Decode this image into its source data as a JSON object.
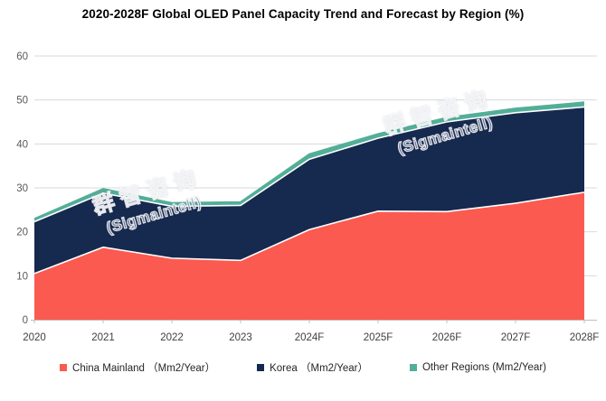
{
  "title": "2020-2028F Global OLED Panel Capacity Trend and Forecast by Region (%)",
  "watermark": {
    "line1": "群智咨询",
    "line2": "(Sigmaintell)"
  },
  "chart_data": {
    "type": "area",
    "stacked": true,
    "title": "2020-2028F Global OLED Panel Capacity Trend and Forecast by Region (%)",
    "categories": [
      "2020",
      "2021",
      "2022",
      "2023",
      "2024F",
      "2025F",
      "2026F",
      "2027F",
      "2028F"
    ],
    "series": [
      {
        "name": "China Mainland",
        "legend_label": "China Mainland （Mm2/Year）",
        "color": "#FB5A50",
        "values": [
          10.5,
          16.5,
          14.0,
          13.5,
          20.5,
          24.7,
          24.6,
          26.5,
          29.0
        ]
      },
      {
        "name": "Korea",
        "legend_label": "Korea （Mm2/Year）",
        "color": "#16294F",
        "values": [
          11.8,
          12.3,
          11.8,
          12.5,
          16.0,
          16.6,
          20.4,
          20.6,
          19.4
        ]
      },
      {
        "name": "Other Regions",
        "legend_label": "Other Regions (Mm2/Year)",
        "color": "#53AE98",
        "values": [
          0.7,
          1.0,
          0.8,
          0.8,
          1.2,
          1.0,
          1.0,
          1.0,
          1.1
        ]
      }
    ],
    "stacked_totals": [
      23.0,
      29.8,
      26.6,
      26.8,
      37.7,
      42.3,
      46.0,
      48.1,
      49.5
    ],
    "xlabel": "",
    "ylabel": "",
    "ylim": [
      0,
      60
    ],
    "y_ticks": [
      0,
      10,
      20,
      30,
      40,
      50,
      60
    ],
    "grid": true,
    "legend_position": "bottom"
  },
  "colors": {
    "gridline": "#D9D9D9",
    "axis_line": "#BFBFBF",
    "boundary_stroke": "#FFFFFF",
    "y_tick_label": "#595959",
    "x_tick_label": "#404040",
    "title": "#000000"
  }
}
